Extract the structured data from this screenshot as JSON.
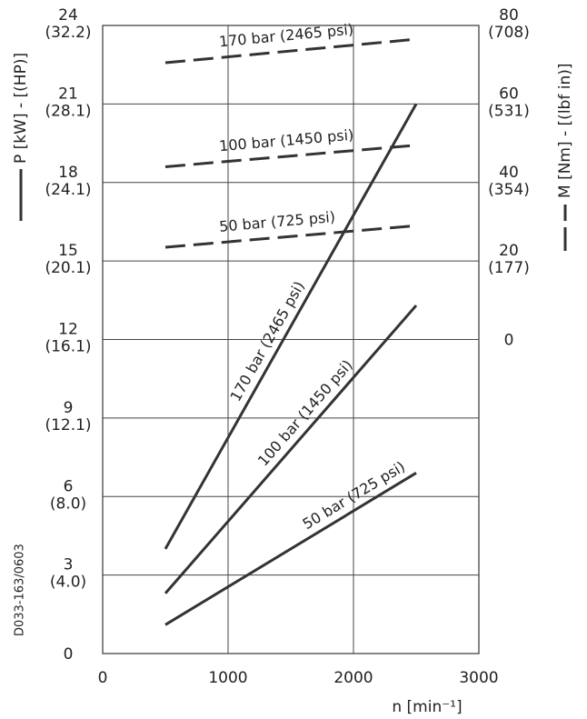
{
  "chart_data": {
    "type": "line",
    "title": "",
    "colors": {
      "ink": "#333333",
      "grid": "#444444",
      "text": "#222222"
    },
    "xlabel": "n [min⁻¹]",
    "ylabel_left": "P [kW] - [(HP)]",
    "ylabel_right": "M [Nm] - [(lbf in)]",
    "xlim": [
      0,
      3000
    ],
    "ylim": [
      0,
      24
    ],
    "grid": true,
    "x_ticks": [
      {
        "value": 0,
        "label": "0"
      },
      {
        "value": 1000,
        "label": "1000"
      },
      {
        "value": 2000,
        "label": "2000"
      },
      {
        "value": 3000,
        "label": "3000"
      }
    ],
    "y_ticks_left": [
      {
        "value": 0,
        "label": "0",
        "label2": ""
      },
      {
        "value": 3,
        "label": "3",
        "label2": "(4.0)"
      },
      {
        "value": 6,
        "label": "6",
        "label2": "(8.0)"
      },
      {
        "value": 9,
        "label": "9",
        "label2": "(12.1)"
      },
      {
        "value": 12,
        "label": "12",
        "label2": "(16.1)"
      },
      {
        "value": 15,
        "label": "15",
        "label2": "(20.1)"
      },
      {
        "value": 18,
        "label": "18",
        "label2": "(24.1)"
      },
      {
        "value": 21,
        "label": "21",
        "label2": "(28.1)"
      },
      {
        "value": 24,
        "label": "24",
        "label2": "(32.2)"
      }
    ],
    "y_ticks_right": [
      {
        "torque": 0,
        "label": "0",
        "label2": ""
      },
      {
        "torque": 20,
        "label": "20",
        "label2": "(177)"
      },
      {
        "torque": 40,
        "label": "40",
        "label2": "(354)"
      },
      {
        "torque": 60,
        "label": "60",
        "label2": "(531)"
      },
      {
        "torque": 80,
        "label": "80",
        "label2": "(708)"
      }
    ],
    "right_axis_map": {
      "torque_min": 0,
      "torque_max": 80,
      "left_at_min": 12,
      "left_at_max": 24
    },
    "series": [
      {
        "name": "170 bar (2465 psi)",
        "kind": "power",
        "dash": false,
        "x": [
          500,
          2500
        ],
        "y": [
          4.0,
          21.0
        ],
        "label_at": 0.32
      },
      {
        "name": "100 bar (1450 psi)",
        "kind": "power",
        "dash": false,
        "x": [
          500,
          2500
        ],
        "y": [
          2.3,
          13.3
        ],
        "label_at": 0.42
      },
      {
        "name": "50 bar (725 psi)",
        "kind": "power",
        "dash": false,
        "x": [
          500,
          2500
        ],
        "y": [
          1.1,
          6.9
        ],
        "label_at": 0.58
      },
      {
        "name": "170 bar (2465 psi)",
        "kind": "torque",
        "dash": true,
        "x": [
          500,
          2500
        ],
        "y": [
          70.5,
          76.5
        ],
        "label_at": 0.22
      },
      {
        "name": "100 bar (1450 psi)",
        "kind": "torque",
        "dash": true,
        "x": [
          500,
          2500
        ],
        "y": [
          44,
          49.5
        ],
        "label_at": 0.22
      },
      {
        "name": "50 bar (725 psi)",
        "kind": "torque",
        "dash": true,
        "x": [
          500,
          2500
        ],
        "y": [
          23.5,
          29
        ],
        "label_at": 0.22
      }
    ]
  },
  "doc_code": "D033-163/0603"
}
